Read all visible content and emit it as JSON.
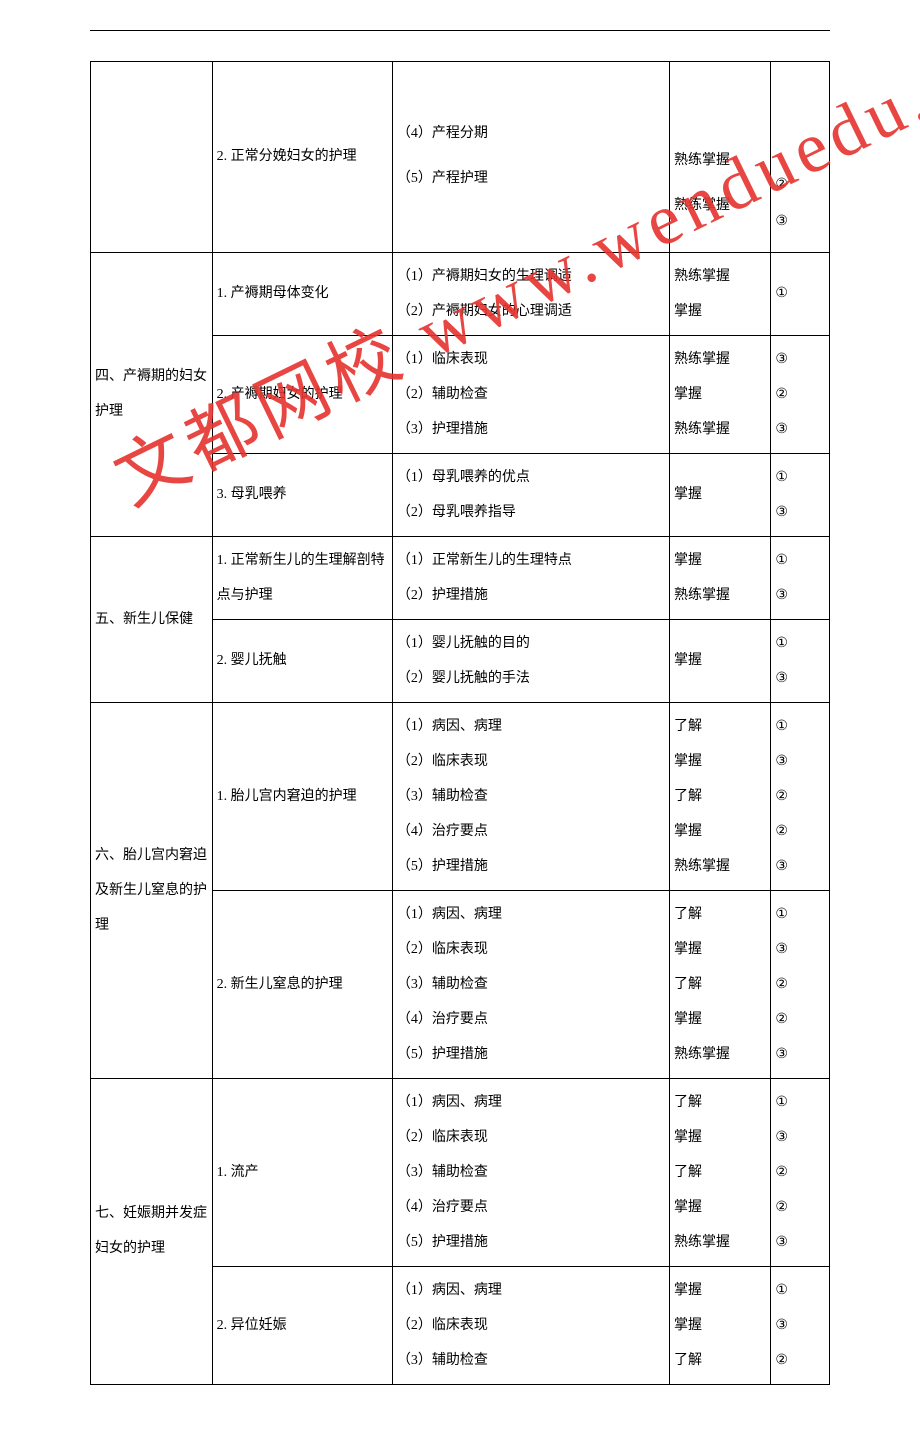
{
  "watermark": "文都网校  www.wenduedu.com",
  "rows": [
    {
      "c1": {
        "text": "",
        "rowspan": 1
      },
      "c2": {
        "text": "2. 正常分娩妇女的护理",
        "rowspan": 1
      },
      "c3": {
        "text": "（4）产程分期\n（5）产程护理",
        "rowspan": 1
      },
      "c4": {
        "text": "熟练掌握\n熟练掌握",
        "rowspan": 1
      },
      "c5": {
        "text": "②\n③",
        "rowspan": 1
      }
    },
    {
      "c1": {
        "text": "四、产褥期的妇女护理",
        "rowspan": 3
      },
      "c2": {
        "text": "1. 产褥期母体变化",
        "rowspan": 1
      },
      "c3": {
        "text": "（1）产褥期妇女的生理调适\n（2）产褥期妇女的心理调适",
        "rowspan": 1
      },
      "c4": {
        "text": "熟练掌握\n掌握",
        "rowspan": 1
      },
      "c5": {
        "text": "①",
        "rowspan": 1
      }
    },
    {
      "c2": {
        "text": "2. 产褥期妇女的护理",
        "rowspan": 1
      },
      "c3": {
        "text": "（1）临床表现\n（2）辅助检查\n（3）护理措施",
        "rowspan": 1
      },
      "c4": {
        "text": "熟练掌握\n掌握\n熟练掌握",
        "rowspan": 1
      },
      "c5": {
        "text": "③\n②\n③",
        "rowspan": 1
      }
    },
    {
      "c2": {
        "text": "3. 母乳喂养",
        "rowspan": 1
      },
      "c3": {
        "text": "（1）母乳喂养的优点\n（2）母乳喂养指导",
        "rowspan": 1
      },
      "c4": {
        "text": "掌握",
        "rowspan": 1
      },
      "c5": {
        "text": "①\n③",
        "rowspan": 1
      }
    },
    {
      "c1": {
        "text": "五、新生儿保健",
        "rowspan": 2
      },
      "c2": {
        "text": "1. 正常新生儿的生理解剖特点与护理",
        "rowspan": 1
      },
      "c3": {
        "text": "（1）正常新生儿的生理特点\n（2）护理措施",
        "rowspan": 1
      },
      "c4": {
        "text": "掌握\n熟练掌握",
        "rowspan": 1
      },
      "c5": {
        "text": "①\n③",
        "rowspan": 1
      }
    },
    {
      "c2": {
        "text": "2. 婴儿抚触",
        "rowspan": 1
      },
      "c3": {
        "text": "（1）婴儿抚触的目的\n（2）婴儿抚触的手法",
        "rowspan": 1
      },
      "c4": {
        "text": "掌握",
        "rowspan": 1
      },
      "c5": {
        "text": "①\n③",
        "rowspan": 1
      }
    },
    {
      "c1": {
        "text": "六、胎儿宫内窘迫及新生儿窒息的护理",
        "rowspan": 2
      },
      "c2": {
        "text": "1. 胎儿宫内窘迫的护理",
        "rowspan": 1
      },
      "c3": {
        "text": "（1）病因、病理\n（2）临床表现\n（3）辅助检查\n（4）治疗要点\n（5）护理措施",
        "rowspan": 1
      },
      "c4": {
        "text": "了解\n掌握\n了解\n掌握\n熟练掌握",
        "rowspan": 1
      },
      "c5": {
        "text": "①\n③\n②\n②\n③",
        "rowspan": 1
      }
    },
    {
      "c2": {
        "text": "2. 新生儿窒息的护理",
        "rowspan": 1
      },
      "c3": {
        "text": "（1）病因、病理\n（2）临床表现\n（3）辅助检查\n（4）治疗要点\n（5）护理措施",
        "rowspan": 1
      },
      "c4": {
        "text": "了解\n掌握\n了解\n掌握\n熟练掌握",
        "rowspan": 1
      },
      "c5": {
        "text": "①\n③\n②\n②\n③",
        "rowspan": 1
      }
    },
    {
      "c1": {
        "text": "七、妊娠期并发症妇女的护理",
        "rowspan": 2
      },
      "c2": {
        "text": "1. 流产",
        "rowspan": 1
      },
      "c3": {
        "text": "（1）病因、病理\n（2）临床表现\n（3）辅助检查\n（4）治疗要点\n（5）护理措施",
        "rowspan": 1
      },
      "c4": {
        "text": "了解\n掌握\n了解\n掌握\n熟练掌握",
        "rowspan": 1
      },
      "c5": {
        "text": "①\n③\n②\n②\n③",
        "rowspan": 1
      }
    },
    {
      "c2": {
        "text": "2. 异位妊娠",
        "rowspan": 1
      },
      "c3": {
        "text": "（1）病因、病理\n（2）临床表现\n（3）辅助检查",
        "rowspan": 1
      },
      "c4": {
        "text": "掌握\n掌握\n了解",
        "rowspan": 1
      },
      "c5": {
        "text": "①\n③\n②",
        "rowspan": 1
      }
    }
  ]
}
